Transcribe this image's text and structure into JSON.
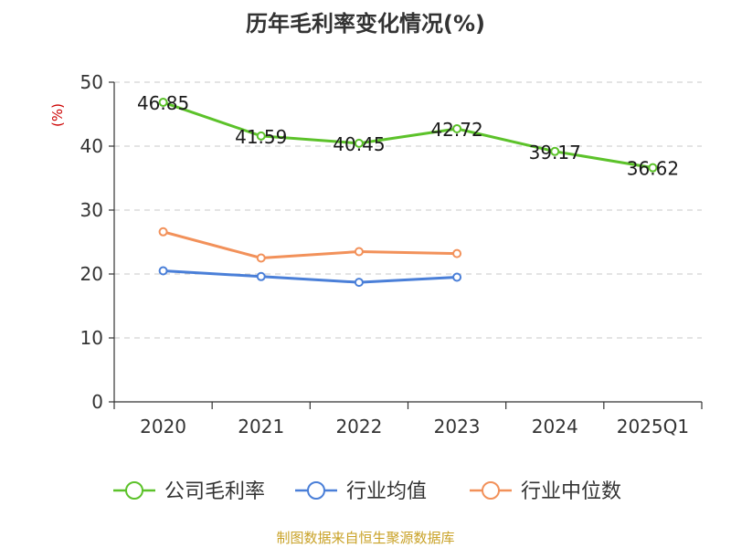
{
  "title": "历年毛利率变化情况(%)",
  "source_note": "制图数据来自恒生聚源数据库",
  "chart_data": {
    "type": "line",
    "title": "历年毛利率变化情况(%)",
    "ylabel": "(%)",
    "xlabel": "",
    "categories": [
      "2020",
      "2021",
      "2022",
      "2023",
      "2024",
      "2025Q1"
    ],
    "ylim": [
      0,
      50
    ],
    "yticks": [
      0,
      10,
      20,
      30,
      40,
      50
    ],
    "grid": true,
    "legend_position": "bottom",
    "series": [
      {
        "name": "公司毛利率",
        "color": "#5cc22a",
        "values": [
          46.85,
          41.59,
          40.45,
          42.72,
          39.17,
          36.62
        ],
        "labels": [
          "46.85",
          "41.59",
          "40.45",
          "42.72",
          "39.17",
          "36.62"
        ]
      },
      {
        "name": "行业均值",
        "color": "#4a7fd8",
        "values": [
          20.5,
          19.6,
          18.7,
          19.5,
          null,
          null
        ]
      },
      {
        "name": "行业中位数",
        "color": "#f2915a",
        "values": [
          26.6,
          22.5,
          23.5,
          23.2,
          null,
          null
        ]
      }
    ]
  }
}
